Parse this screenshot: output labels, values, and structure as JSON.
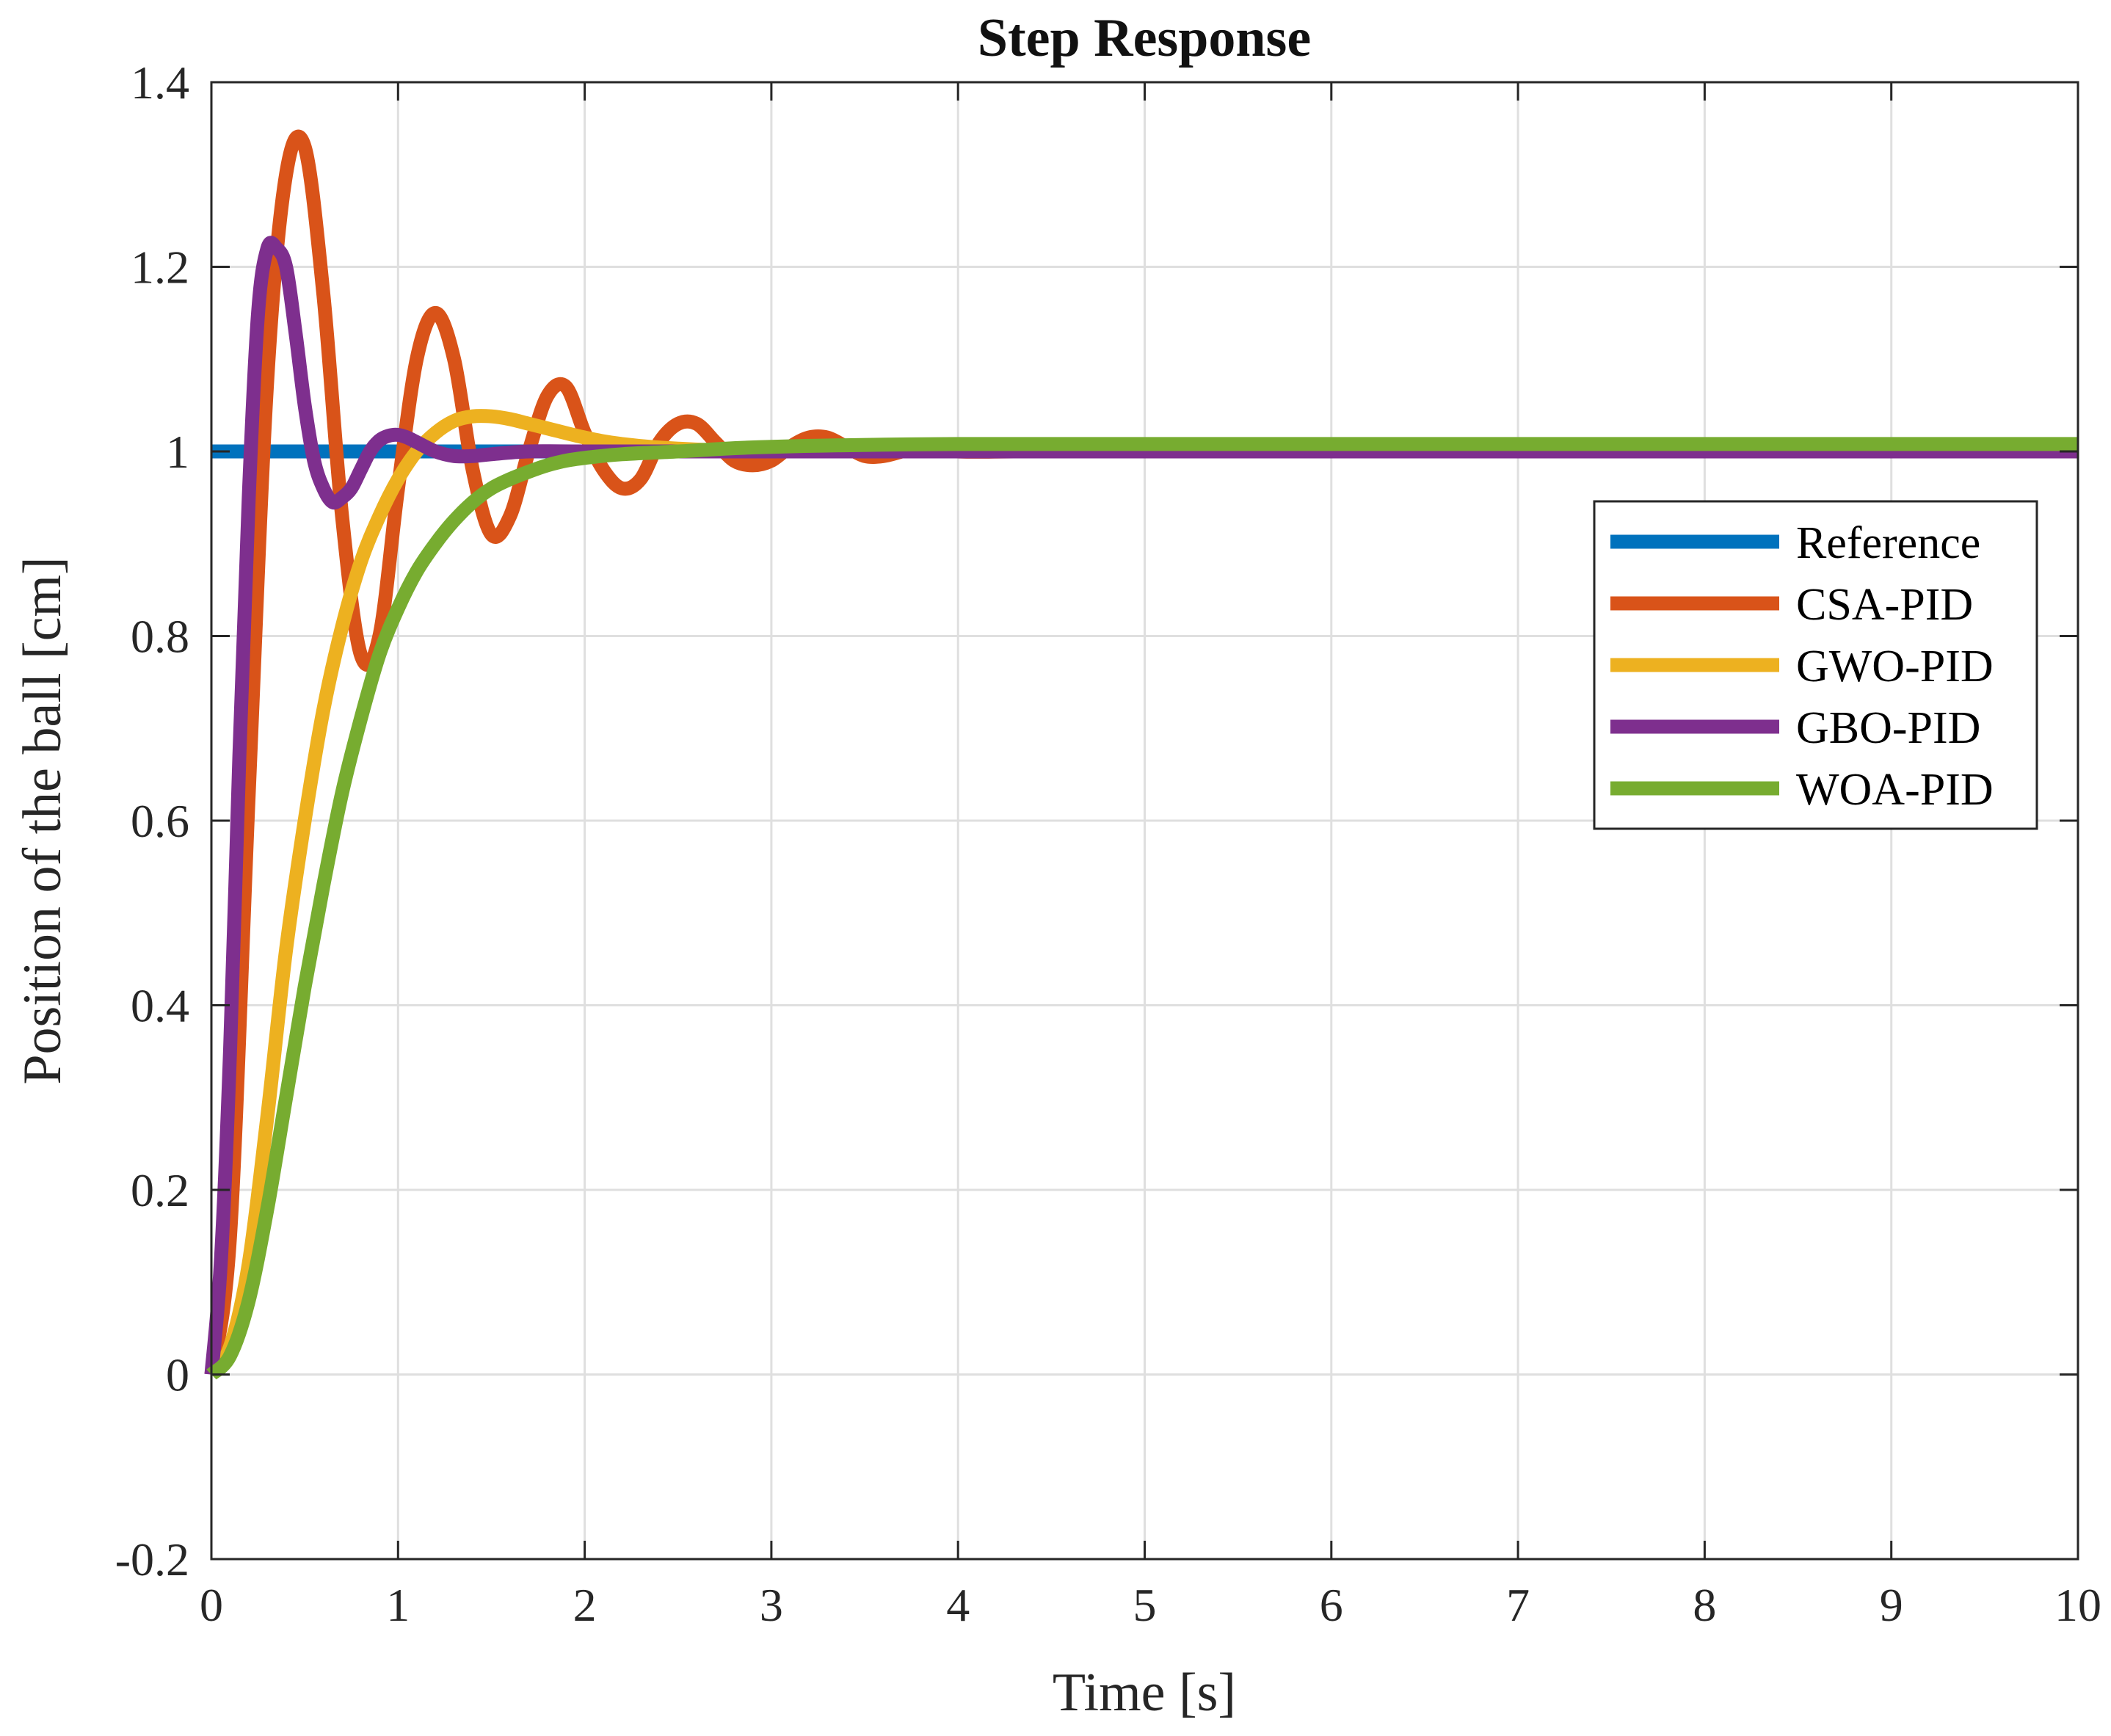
{
  "chart_data": {
    "type": "line",
    "title": "Step Response",
    "xlabel": "Time [s]",
    "ylabel": "Position of the ball [cm]",
    "xlim": [
      0,
      10
    ],
    "ylim": [
      -0.2,
      1.4
    ],
    "grid": true,
    "legend_position": "right, upper-middle",
    "xticks": [
      0,
      1,
      2,
      3,
      4,
      5,
      6,
      7,
      8,
      9,
      10
    ],
    "xtick_labels": [
      "0",
      "1",
      "2",
      "3",
      "4",
      "5",
      "6",
      "7",
      "8",
      "9",
      "10"
    ],
    "yticks": [
      -0.2,
      0,
      0.2,
      0.4,
      0.6,
      0.8,
      1,
      1.2,
      1.4
    ],
    "ytick_labels": [
      "-0.2",
      "0",
      "0.2",
      "0.4",
      "0.6",
      "0.8",
      "1",
      "1.2",
      "1.4"
    ],
    "series": [
      {
        "name": "Reference",
        "color": "#0072BD",
        "x": [
          0,
          10
        ],
        "y": [
          1,
          1
        ]
      },
      {
        "name": "CSA-PID",
        "color": "#D95319",
        "x": [
          0,
          0.1,
          0.2,
          0.3,
          0.4,
          0.5,
          0.6,
          0.7,
          0.8,
          0.9,
          1.0,
          1.1,
          1.2,
          1.3,
          1.4,
          1.5,
          1.6,
          1.7,
          1.8,
          1.9,
          2.0,
          2.1,
          2.2,
          2.3,
          2.4,
          2.5,
          2.6,
          2.7,
          2.8,
          2.9,
          3.0,
          3.1,
          3.2,
          3.3,
          3.4,
          3.5,
          3.6,
          3.7,
          3.8,
          3.9,
          4.0,
          4.3,
          4.6,
          5.0,
          6.0,
          8.0,
          10.0
        ],
        "y": [
          0,
          0.15,
          0.63,
          1.08,
          1.3,
          1.33,
          1.17,
          0.93,
          0.78,
          0.8,
          0.96,
          1.1,
          1.15,
          1.1,
          0.98,
          0.91,
          0.93,
          1.0,
          1.06,
          1.07,
          1.02,
          0.98,
          0.96,
          0.97,
          1.01,
          1.03,
          1.03,
          1.01,
          0.99,
          0.985,
          0.99,
          1.005,
          1.015,
          1.015,
          1.005,
          0.995,
          0.995,
          1.0,
          1.005,
          1.005,
          1.0,
          1.0,
          1.0,
          1.0,
          1.0,
          1.0,
          1.0
        ]
      },
      {
        "name": "GWO-PID",
        "color": "#EDB120",
        "x": [
          0,
          0.1,
          0.2,
          0.3,
          0.4,
          0.5,
          0.6,
          0.7,
          0.8,
          0.9,
          1.0,
          1.1,
          1.2,
          1.3,
          1.4,
          1.5,
          1.6,
          1.7,
          1.8,
          2.0,
          2.2,
          2.5,
          3.0,
          4.0,
          6.0,
          10.0
        ],
        "y": [
          0,
          0.03,
          0.12,
          0.28,
          0.46,
          0.6,
          0.72,
          0.81,
          0.88,
          0.93,
          0.97,
          1.0,
          1.02,
          1.033,
          1.038,
          1.038,
          1.035,
          1.03,
          1.025,
          1.015,
          1.008,
          1.003,
          1.0,
          1.0,
          1.0,
          1.0
        ]
      },
      {
        "name": "GBO-PID",
        "color": "#7E2F8E",
        "x": [
          0,
          0.05,
          0.1,
          0.15,
          0.2,
          0.25,
          0.3,
          0.35,
          0.4,
          0.45,
          0.5,
          0.55,
          0.6,
          0.65,
          0.7,
          0.75,
          0.8,
          0.85,
          0.9,
          0.95,
          1.0,
          1.05,
          1.1,
          1.2,
          1.3,
          1.4,
          1.5,
          1.7,
          2.0,
          3.0,
          10.0
        ],
        "y": [
          0,
          0.12,
          0.35,
          0.67,
          0.95,
          1.15,
          1.22,
          1.22,
          1.2,
          1.13,
          1.05,
          0.99,
          0.96,
          0.945,
          0.95,
          0.96,
          0.98,
          1.0,
          1.012,
          1.017,
          1.018,
          1.015,
          1.01,
          1.0,
          0.995,
          0.995,
          0.997,
          1.0,
          1.0,
          1.0,
          1.0
        ]
      },
      {
        "name": "WOA-PID",
        "color": "#77AC30",
        "x": [
          0,
          0.1,
          0.2,
          0.3,
          0.4,
          0.5,
          0.6,
          0.7,
          0.8,
          0.9,
          1.0,
          1.1,
          1.2,
          1.3,
          1.4,
          1.5,
          1.6,
          1.7,
          1.8,
          1.9,
          2.0,
          2.2,
          2.5,
          3.0,
          4.0,
          6.0,
          10.0
        ],
        "y": [
          0,
          0.02,
          0.08,
          0.18,
          0.3,
          0.42,
          0.53,
          0.63,
          0.71,
          0.78,
          0.83,
          0.87,
          0.9,
          0.925,
          0.945,
          0.96,
          0.97,
          0.978,
          0.985,
          0.99,
          0.993,
          0.997,
          1.0,
          1.005,
          1.008,
          1.008,
          1.008
        ]
      }
    ]
  }
}
